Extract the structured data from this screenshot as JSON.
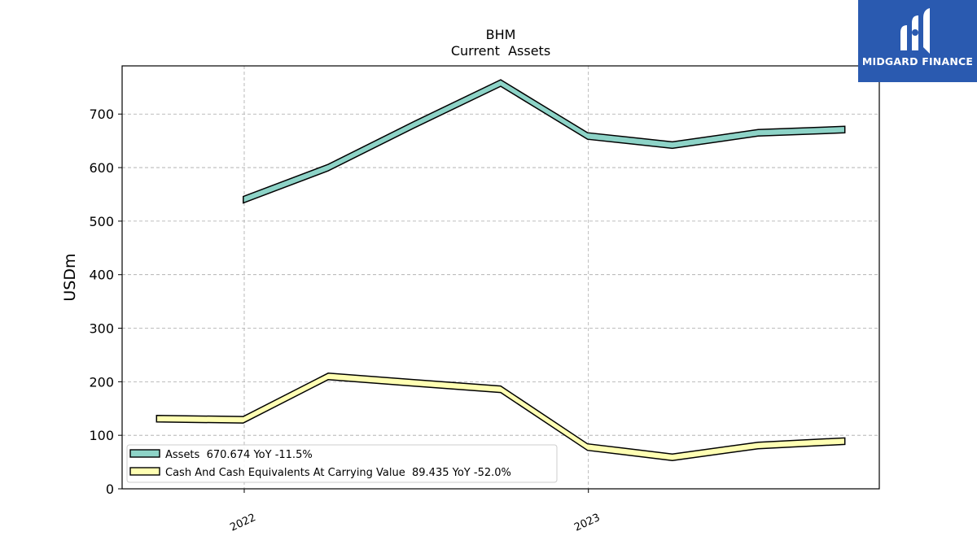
{
  "logo": {
    "text": "MIDGARD FINANCE",
    "background": "#2a5ab0"
  },
  "chart_data": {
    "type": "line",
    "title": "BHM",
    "subtitle": "Current  Assets",
    "ylabel": "USDm",
    "xlabel": "",
    "x_ticks": [
      "2022",
      "2023"
    ],
    "ylim": [
      0,
      790
    ],
    "y_ticks": [
      0,
      100,
      200,
      300,
      400,
      500,
      600,
      700
    ],
    "grid": true,
    "legend_position": "lower-left",
    "x": [
      "2021-09-30",
      "2021-12-31",
      "2022-03-31",
      "2022-06-30",
      "2022-09-30",
      "2022-12-31",
      "2023-03-31",
      "2023-06-30",
      "2023-09-30"
    ],
    "series": [
      {
        "name": "Assets",
        "legend_label": "Assets  670.674 YoY -11.5%",
        "color": "#8dd3c7",
        "values": [
          null,
          540,
          600,
          680,
          758,
          659,
          642,
          665,
          671
        ]
      },
      {
        "name": "Cash And Cash Equivalents At Carrying Value",
        "legend_label": "Cash And Cash Equivalents At Carrying Value  89.435 YoY -52.0%",
        "color": "#ffffb3",
        "values": [
          131,
          129,
          210,
          198,
          186,
          78,
          59,
          81,
          89
        ]
      }
    ]
  }
}
